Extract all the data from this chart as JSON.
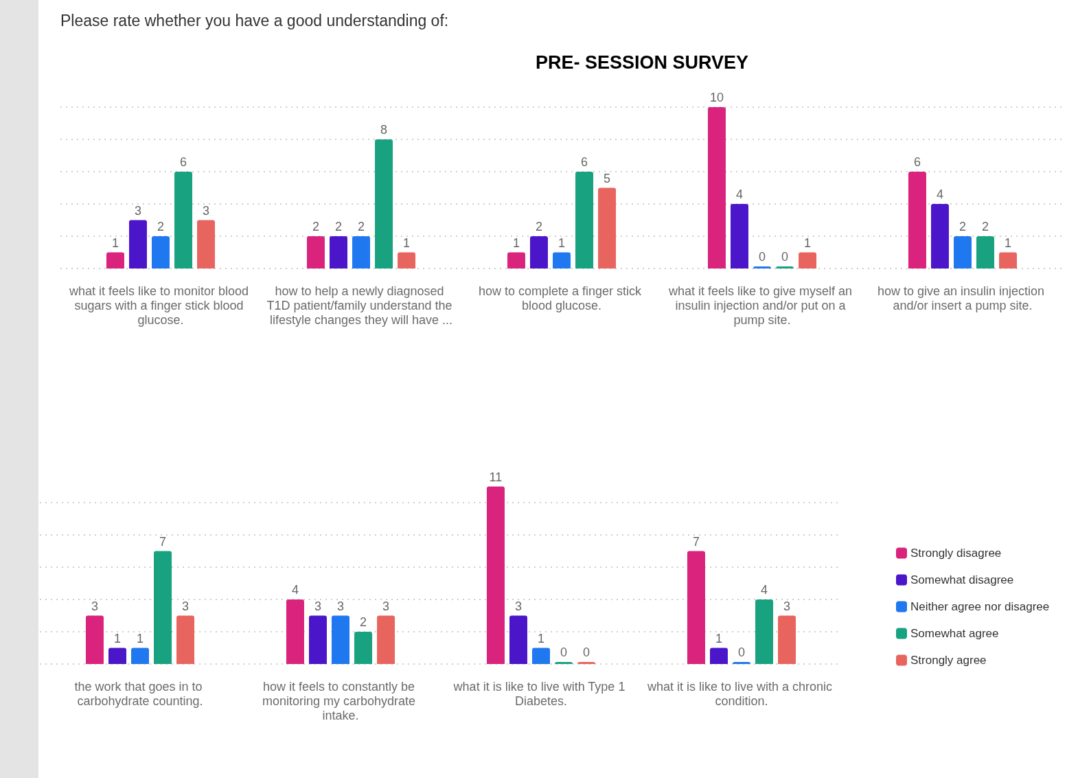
{
  "chart_data": [
    {
      "type": "bar",
      "title": "PRE- SESSION SURVEY",
      "annotations": [
        "Please rate whether you have a good understanding of:"
      ],
      "categories": [
        "what it feels like to monitor blood sugars with a finger stick blood glucose.",
        "how to help a newly diagnosed T1D patient/family understand the lifestyle changes they will have ...",
        "how to complete a finger stick blood glucose.",
        "what it feels like to give myself an insulin injection and/or put on a pump site.",
        "how to give an insulin injection and/or insert a pump site."
      ],
      "series": [
        {
          "color": "#d9237d",
          "values": [
            1,
            2,
            1,
            10,
            6
          ]
        },
        {
          "color": "#4b16c9",
          "values": [
            3,
            2,
            2,
            4,
            4
          ]
        },
        {
          "color": "#1f78f0",
          "values": [
            2,
            2,
            1,
            0,
            2
          ]
        },
        {
          "color": "#19a27f",
          "values": [
            6,
            8,
            6,
            0,
            2
          ]
        },
        {
          "color": "#e8655f",
          "values": [
            3,
            1,
            5,
            1,
            1
          ]
        }
      ],
      "tick_labels": "x",
      "grid": "y",
      "data_labels": true
    },
    {
      "type": "bar",
      "categories": [
        "the work that goes in to carbohydrate counting.",
        "how it feels to constantly be monitoring my carbohydrate intake.",
        "what it is like to live with Type 1 Diabetes.",
        "what it is like to live with a chronic condition."
      ],
      "series": [
        {
          "name": "Strongly disagree",
          "color": "#d9237d",
          "values": [
            3,
            4,
            11,
            7
          ]
        },
        {
          "name": "Somewhat disagree",
          "color": "#4b16c9",
          "values": [
            1,
            3,
            3,
            1
          ]
        },
        {
          "name": "Neither agree nor disagree",
          "color": "#1f78f0",
          "values": [
            1,
            3,
            1,
            0
          ]
        },
        {
          "name": "Somewhat agree",
          "color": "#19a27f",
          "values": [
            7,
            2,
            0,
            4
          ]
        },
        {
          "name": "Strongly agree",
          "color": "#e8655f",
          "values": [
            3,
            3,
            0,
            3
          ]
        }
      ],
      "tick_labels": "x",
      "grid": "y",
      "legend": "right",
      "data_labels": true
    }
  ]
}
